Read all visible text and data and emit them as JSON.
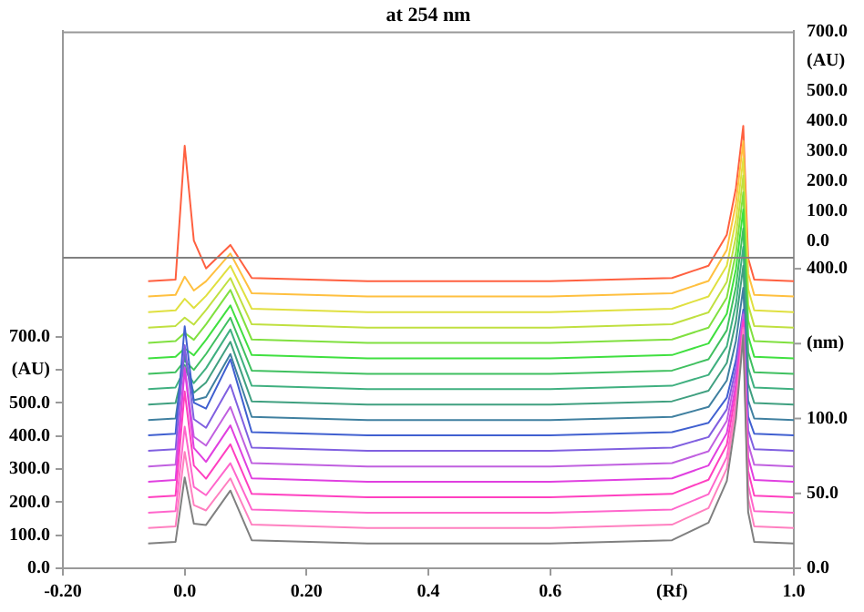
{
  "chart_data": {
    "type": "line",
    "title": "at 254 nm",
    "legend": false,
    "grid": false,
    "marker": "none",
    "line_style": "solid",
    "x": [
      -0.06,
      -0.015,
      0.0,
      0.015,
      0.035,
      0.075,
      0.11,
      0.3,
      0.6,
      0.8,
      0.86,
      0.89,
      0.905,
      0.917,
      0.925,
      0.935,
      1.0
    ],
    "xlim": [
      -0.2,
      1.0
    ],
    "xticks": [
      {
        "value": -0.2,
        "label": "-0.20"
      },
      {
        "value": 0,
        "label": "0.0"
      },
      {
        "value": 0.2,
        "label": "0.20"
      },
      {
        "value": 0.4,
        "label": "0.4"
      },
      {
        "value": 0.6,
        "label": "0.6"
      },
      {
        "value": 0.8,
        "label": "(Rf)"
      },
      {
        "value": 1.0,
        "label": "1.0"
      }
    ],
    "log": "y3",
    "ylim": [
      0,
      1624
    ],
    "yticks": [
      {
        "value": 0,
        "label": "0.0"
      },
      {
        "value": 100,
        "label": "100.0"
      },
      {
        "value": 200,
        "label": "200.0"
      },
      {
        "value": 300,
        "label": "300.0"
      },
      {
        "value": 400,
        "label": "400.0"
      },
      {
        "value": 500,
        "label": "500.0"
      },
      {
        "value": 600,
        "label": "(AU)"
      },
      {
        "value": 700,
        "label": "700.0"
      }
    ],
    "y2lim": [
      -1090,
      700
    ],
    "y2ticks": [
      {
        "value": 0,
        "label": "0.0"
      },
      {
        "value": 100,
        "label": "100.0"
      },
      {
        "value": 200,
        "label": "200.0"
      },
      {
        "value": 300,
        "label": "300.0"
      },
      {
        "value": 400,
        "label": "400.0"
      },
      {
        "value": 500,
        "label": "500.0"
      },
      {
        "value": 600,
        "label": "(AU)"
      },
      {
        "value": 700,
        "label": "700.0"
      }
    ],
    "y3lim": [
      0,
      3600
    ],
    "y3ticks": [
      {
        "value": 0,
        "label": "0.0"
      },
      {
        "value": 50,
        "label": "50.0"
      },
      {
        "value": 100,
        "label": "100.0"
      },
      {
        "value": 200,
        "label": "(nm)"
      },
      {
        "value": 400,
        "label": "400.0"
      }
    ],
    "ref_lines": [
      {
        "axis": "y",
        "value": 939,
        "color": "#808080"
      }
    ],
    "series": [
      {
        "color": "#808080",
        "values": [
          75,
          80,
          275,
          135,
          131,
          235,
          85,
          75,
          75,
          85,
          138,
          264,
          453,
          705,
          170,
          80,
          75
        ]
      },
      {
        "color": "#ff80c0",
        "values": [
          122,
          127,
          352,
          191,
          175,
          272,
          132,
          122,
          122,
          132,
          182,
          302,
          482,
          722,
          212,
          127,
          122
        ]
      },
      {
        "color": "#ff66cc",
        "values": [
          168,
          173,
          428,
          246,
          221,
          318,
          178,
          168,
          168,
          178,
          224,
          336,
          504,
          728,
          252,
          173,
          168
        ]
      },
      {
        "color": "#ff40c0",
        "values": [
          215,
          220,
          535,
          311,
          271,
          375,
          225,
          215,
          215,
          225,
          268,
          374,
          533,
          745,
          295,
          220,
          215
        ]
      },
      {
        "color": "#e040e0",
        "values": [
          262,
          267,
          602,
          364,
          322,
          432,
          272,
          262,
          262,
          272,
          311,
          409,
          556,
          752,
          336,
          267,
          262
        ]
      },
      {
        "color": "#c060e0",
        "values": [
          308,
          313,
          608,
          398,
          371,
          488,
          318,
          308,
          308,
          318,
          354,
          446,
          584,
          768,
          377,
          313,
          308
        ]
      },
      {
        "color": "#8060e0",
        "values": [
          355,
          360,
          675,
          451,
          425,
          555,
          365,
          355,
          355,
          365,
          397,
          481,
          607,
          775,
          418,
          360,
          355
        ]
      },
      {
        "color": "#4060d0",
        "values": [
          402,
          407,
          732,
          501,
          483,
          632,
          412,
          402,
          402,
          412,
          440,
          516,
          630,
          782,
          459,
          407,
          402
        ]
      },
      {
        "color": "#4080a0",
        "values": [
          448,
          453,
          648,
          508,
          518,
          648,
          458,
          448,
          448,
          458,
          488,
          568,
          688,
          848,
          508,
          453,
          448
        ]
      },
      {
        "color": "#40a080",
        "values": [
          495,
          500,
          615,
          531,
          562,
          685,
          505,
          495,
          495,
          505,
          537,
          621,
          747,
          915,
          558,
          500,
          495
        ]
      },
      {
        "color": "#40b080",
        "values": [
          542,
          547,
          602,
          560,
          605,
          722,
          552,
          542,
          542,
          552,
          585,
          671,
          800,
          972,
          607,
          547,
          542
        ]
      },
      {
        "color": "#40c060",
        "values": [
          588,
          593,
          628,
          600,
          648,
          758,
          598,
          588,
          588,
          598,
          632,
          720,
          852,
          1028,
          654,
          593,
          588
        ]
      },
      {
        "color": "#40e040",
        "values": [
          635,
          640,
          665,
          644,
          691,
          795,
          645,
          635,
          635,
          645,
          680,
          770,
          905,
          1085,
          703,
          640,
          635
        ]
      },
      {
        "color": "#80e040",
        "values": [
          682,
          687,
          712,
          691,
          738,
          842,
          692,
          682,
          682,
          692,
          728,
          819,
          955,
          1137,
          750,
          687,
          682
        ]
      },
      {
        "color": "#c0e040",
        "values": [
          728,
          733,
          758,
          737,
          781,
          878,
          738,
          728,
          728,
          738,
          774,
          866,
          1004,
          1188,
          797,
          733,
          728
        ]
      },
      {
        "color": "#e0e040",
        "values": [
          775,
          780,
          815,
          787,
          824,
          915,
          785,
          775,
          775,
          785,
          822,
          915,
          1054,
          1240,
          845,
          780,
          775
        ]
      },
      {
        "color": "#ffc040",
        "values": [
          822,
          827,
          882,
          840,
          868,
          952,
          832,
          822,
          822,
          832,
          869,
          963,
          1104,
          1292,
          892,
          827,
          822
        ]
      },
      {
        "color": "#ff6040",
        "values": [
          868,
          873,
          1278,
          991,
          907,
          978,
          878,
          868,
          868,
          878,
          915,
          1009,
          1150,
          1338,
          938,
          873,
          868
        ]
      }
    ]
  }
}
